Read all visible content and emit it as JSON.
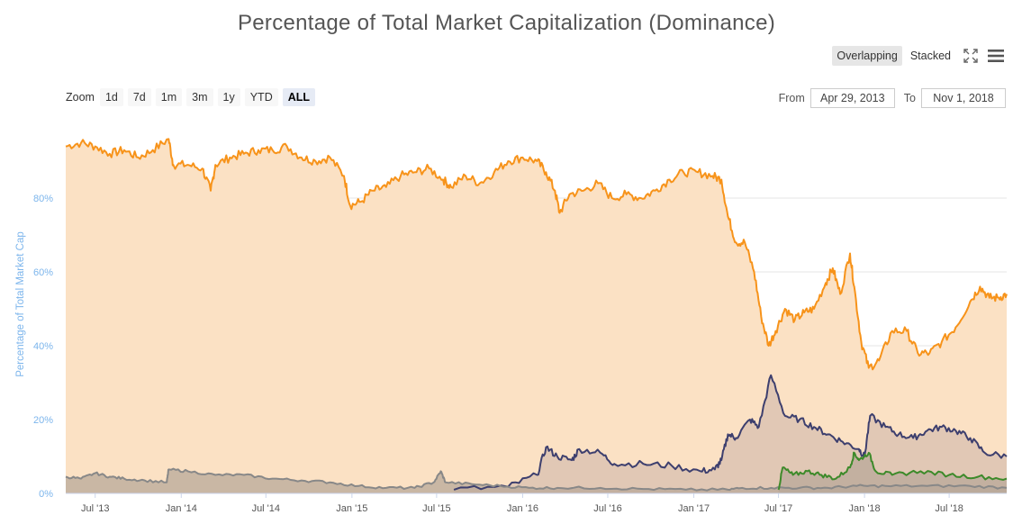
{
  "title": "Percentage of Total Market Capitalization (Dominance)",
  "view_modes": {
    "overlapping": "Overlapping",
    "stacked": "Stacked"
  },
  "icons": {
    "fullscreen": "fullscreen-icon",
    "menu": "hamburger-menu-icon"
  },
  "range_selector": {
    "zoom_label": "Zoom",
    "buttons": [
      "1d",
      "7d",
      "1m",
      "3m",
      "1y",
      "YTD",
      "ALL"
    ],
    "active": "ALL",
    "from_label": "From",
    "from_value": "Apr 29, 2013",
    "to_label": "To",
    "to_value": "Nov 1, 2018"
  },
  "chart_data": {
    "type": "area",
    "title": "Percentage of Total Market Capitalization (Dominance)",
    "ylabel": "Percentage of Total Market Cap",
    "ylim": [
      0,
      100
    ],
    "yticks": [
      "0%",
      "20%",
      "40%",
      "60%",
      "80%"
    ],
    "xticks": [
      "Jul '13",
      "Jan '14",
      "Jul '14",
      "Jan '15",
      "Jul '15",
      "Jan '16",
      "Jul '16",
      "Jan '17",
      "Jul '17",
      "Jan '18",
      "Jul '18"
    ],
    "x_range": [
      "2013-04-29",
      "2018-11-01"
    ],
    "grid": true,
    "series": [
      {
        "color": "#f7931a",
        "fill": "#fbe1c4",
        "points": [
          [
            "2013-04-29",
            94
          ],
          [
            "2013-06-01",
            95
          ],
          [
            "2013-07-01",
            94
          ],
          [
            "2013-08-01",
            92
          ],
          [
            "2013-09-01",
            93
          ],
          [
            "2013-10-01",
            91
          ],
          [
            "2013-11-01",
            93
          ],
          [
            "2013-12-05",
            96
          ],
          [
            "2013-12-15",
            89
          ],
          [
            "2014-01-15",
            89
          ],
          [
            "2014-02-15",
            88
          ],
          [
            "2014-03-05",
            82
          ],
          [
            "2014-03-15",
            89
          ],
          [
            "2014-04-15",
            91
          ],
          [
            "2014-05-15",
            92
          ],
          [
            "2014-06-15",
            93
          ],
          [
            "2014-07-15",
            93
          ],
          [
            "2014-08-15",
            94
          ],
          [
            "2014-09-15",
            91
          ],
          [
            "2014-10-15",
            90
          ],
          [
            "2014-11-15",
            91
          ],
          [
            "2014-12-15",
            86
          ],
          [
            "2014-12-28",
            78
          ],
          [
            "2015-01-20",
            79
          ],
          [
            "2015-02-15",
            82
          ],
          [
            "2015-03-15",
            83
          ],
          [
            "2015-04-15",
            86
          ],
          [
            "2015-05-15",
            87
          ],
          [
            "2015-06-15",
            88
          ],
          [
            "2015-07-15",
            85
          ],
          [
            "2015-08-01",
            83
          ],
          [
            "2015-09-01",
            86
          ],
          [
            "2015-10-01",
            84
          ],
          [
            "2015-11-01",
            87
          ],
          [
            "2015-12-01",
            90
          ],
          [
            "2016-01-01",
            91
          ],
          [
            "2016-02-01",
            90
          ],
          [
            "2016-02-20",
            87
          ],
          [
            "2016-03-10",
            82
          ],
          [
            "2016-03-20",
            76
          ],
          [
            "2016-04-10",
            81
          ],
          [
            "2016-05-10",
            82
          ],
          [
            "2016-06-10",
            84
          ],
          [
            "2016-07-10",
            80
          ],
          [
            "2016-08-10",
            81
          ],
          [
            "2016-09-10",
            80
          ],
          [
            "2016-10-10",
            82
          ],
          [
            "2016-11-10",
            85
          ],
          [
            "2016-12-10",
            87
          ],
          [
            "2017-01-10",
            87
          ],
          [
            "2017-02-10",
            86
          ],
          [
            "2017-03-01",
            85
          ],
          [
            "2017-03-15",
            75
          ],
          [
            "2017-04-01",
            68
          ],
          [
            "2017-04-20",
            68
          ],
          [
            "2017-05-10",
            60
          ],
          [
            "2017-05-25",
            48
          ],
          [
            "2017-06-10",
            40
          ],
          [
            "2017-06-25",
            44
          ],
          [
            "2017-07-15",
            50
          ],
          [
            "2017-08-05",
            47
          ],
          [
            "2017-08-25",
            49
          ],
          [
            "2017-09-15",
            50
          ],
          [
            "2017-10-10",
            57
          ],
          [
            "2017-10-25",
            61
          ],
          [
            "2017-11-10",
            54
          ],
          [
            "2017-12-01",
            65
          ],
          [
            "2017-12-10",
            56
          ],
          [
            "2017-12-25",
            41
          ],
          [
            "2018-01-10",
            34
          ],
          [
            "2018-02-01",
            36
          ],
          [
            "2018-03-01",
            44
          ],
          [
            "2018-04-01",
            44
          ],
          [
            "2018-04-25",
            38
          ],
          [
            "2018-05-20",
            38
          ],
          [
            "2018-06-15",
            41
          ],
          [
            "2018-07-15",
            45
          ],
          [
            "2018-08-15",
            52
          ],
          [
            "2018-09-05",
            56
          ],
          [
            "2018-09-25",
            53
          ],
          [
            "2018-10-15",
            53
          ],
          [
            "2018-11-01",
            54
          ]
        ]
      },
      {
        "color": "#3d3f6e",
        "fill": "#d8bfb0",
        "points": [
          [
            "2015-08-07",
            1.0
          ],
          [
            "2015-12-01",
            1.8
          ],
          [
            "2016-02-01",
            5
          ],
          [
            "2016-02-20",
            12.5
          ],
          [
            "2016-03-15",
            10
          ],
          [
            "2016-04-15",
            9
          ],
          [
            "2016-05-01",
            12
          ],
          [
            "2016-06-15",
            11
          ],
          [
            "2016-07-15",
            8
          ],
          [
            "2016-09-15",
            8
          ],
          [
            "2016-11-15",
            7.5
          ],
          [
            "2017-01-15",
            6
          ],
          [
            "2017-02-15",
            6.5
          ],
          [
            "2017-03-01",
            9
          ],
          [
            "2017-03-15",
            16
          ],
          [
            "2017-04-01",
            15
          ],
          [
            "2017-05-01",
            20
          ],
          [
            "2017-05-20",
            18
          ],
          [
            "2017-06-15",
            32
          ],
          [
            "2017-07-15",
            21
          ],
          [
            "2017-08-15",
            20
          ],
          [
            "2017-09-15",
            18
          ],
          [
            "2017-10-15",
            16
          ],
          [
            "2017-11-15",
            14
          ],
          [
            "2017-12-20",
            12
          ],
          [
            "2018-01-01",
            10
          ],
          [
            "2018-01-13",
            21
          ],
          [
            "2018-02-15",
            18
          ],
          [
            "2018-03-15",
            16
          ],
          [
            "2018-04-15",
            15
          ],
          [
            "2018-05-15",
            17
          ],
          [
            "2018-06-15",
            18
          ],
          [
            "2018-07-15",
            17
          ],
          [
            "2018-08-15",
            15
          ],
          [
            "2018-09-15",
            11
          ],
          [
            "2018-11-01",
            10
          ]
        ]
      },
      {
        "color": "#888888",
        "fill": "#b8a89a",
        "points": [
          [
            "2013-04-29",
            4.5
          ],
          [
            "2013-06-01",
            4
          ],
          [
            "2013-07-01",
            5.5
          ],
          [
            "2013-08-01",
            4.5
          ],
          [
            "2013-09-01",
            4
          ],
          [
            "2013-10-15",
            3.5
          ],
          [
            "2013-12-01",
            3
          ],
          [
            "2013-12-05",
            6.5
          ],
          [
            "2014-01-15",
            6
          ],
          [
            "2014-03-15",
            5
          ],
          [
            "2014-05-15",
            5
          ],
          [
            "2014-07-15",
            4
          ],
          [
            "2014-09-15",
            3.5
          ],
          [
            "2014-11-15",
            3
          ],
          [
            "2015-01-15",
            2
          ],
          [
            "2015-03-15",
            1.5
          ],
          [
            "2015-05-15",
            1.5
          ],
          [
            "2015-06-25",
            3
          ],
          [
            "2015-07-10",
            6
          ],
          [
            "2015-07-20",
            3
          ],
          [
            "2015-09-15",
            2.5
          ],
          [
            "2015-11-15",
            2
          ],
          [
            "2016-01-15",
            1.5
          ],
          [
            "2016-03-15",
            1.5
          ],
          [
            "2016-06-15",
            1.5
          ],
          [
            "2016-09-15",
            1.2
          ],
          [
            "2016-12-15",
            1
          ],
          [
            "2017-03-15",
            1
          ],
          [
            "2017-04-15",
            1.5
          ],
          [
            "2017-06-15",
            1.5
          ],
          [
            "2017-08-15",
            1.5
          ],
          [
            "2017-10-15",
            1.5
          ],
          [
            "2017-12-15",
            2
          ],
          [
            "2018-02-15",
            2
          ],
          [
            "2018-05-15",
            2
          ],
          [
            "2018-08-15",
            2
          ],
          [
            "2018-11-01",
            1.5
          ]
        ]
      },
      {
        "color": "#3d8a2a",
        "fill": "#b8a89a",
        "points": [
          [
            "2017-07-01",
            1
          ],
          [
            "2017-07-10",
            7
          ],
          [
            "2017-08-01",
            5
          ],
          [
            "2017-09-01",
            6
          ],
          [
            "2017-10-01",
            5
          ],
          [
            "2017-11-01",
            4
          ],
          [
            "2017-12-01",
            7
          ],
          [
            "2017-12-10",
            11
          ],
          [
            "2017-12-20",
            9
          ],
          [
            "2018-01-10",
            11
          ],
          [
            "2018-01-25",
            6
          ],
          [
            "2018-03-01",
            5
          ],
          [
            "2018-05-01",
            6
          ],
          [
            "2018-07-01",
            5
          ],
          [
            "2018-09-01",
            4.5
          ],
          [
            "2018-11-01",
            4
          ]
        ]
      }
    ]
  }
}
